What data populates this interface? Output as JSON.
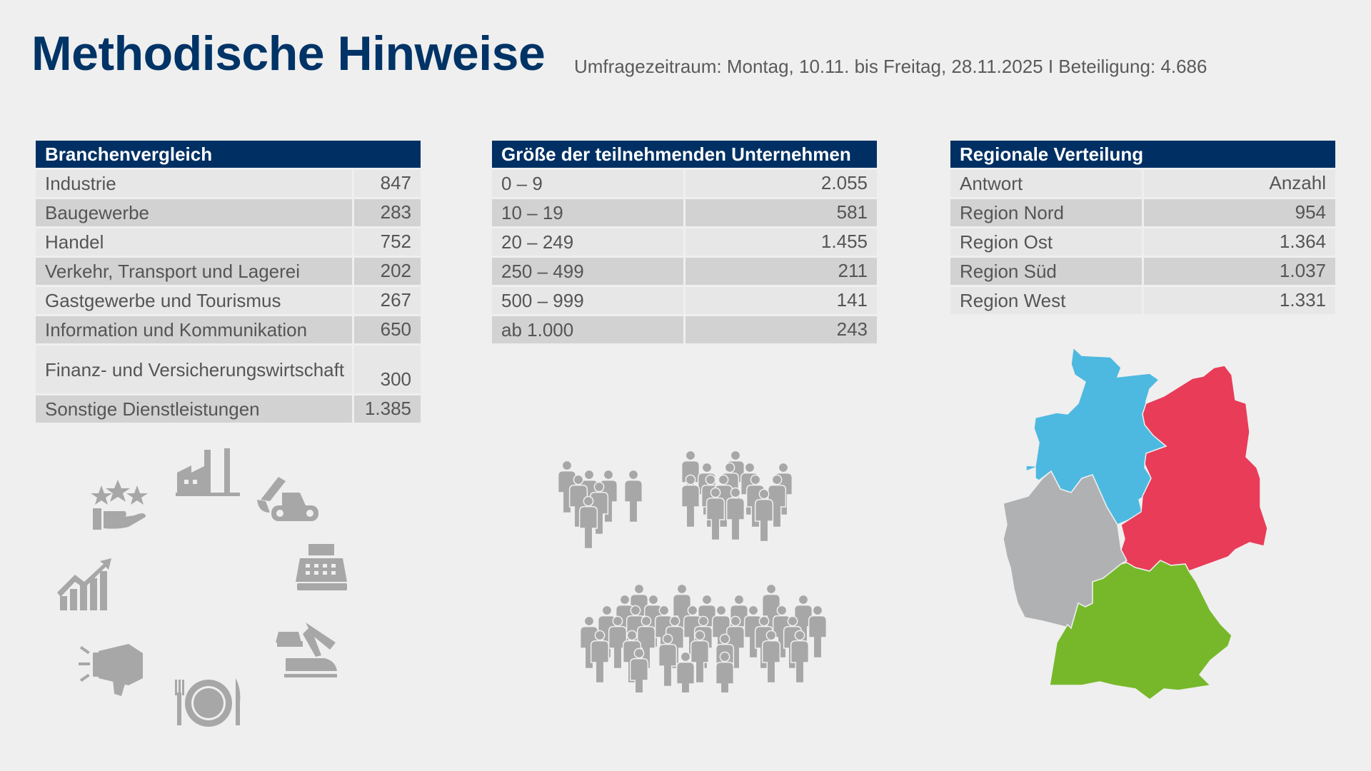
{
  "header": {
    "title": "Methodische Hinweise",
    "subtitle": "Umfragezeitraum: Montag, 10.11. bis Freitag, 28.11.2025 I Beteiligung: 4.686"
  },
  "tables": {
    "branchen": {
      "title": "Branchenvergleich",
      "rows": [
        {
          "label": "Industrie",
          "value": "847"
        },
        {
          "label": "Baugewerbe",
          "value": "283"
        },
        {
          "label": "Handel",
          "value": "752"
        },
        {
          "label": "Verkehr, Transport und Lagerei",
          "value": "202"
        },
        {
          "label": "Gastgewerbe und Tourismus",
          "value": "267"
        },
        {
          "label": "Information und Kommunikation",
          "value": "650"
        },
        {
          "label": "Finanz- und Versicherungswirtschaft",
          "value": "300"
        },
        {
          "label": "Sonstige Dienstleistungen",
          "value": "1.385"
        }
      ]
    },
    "groesse": {
      "title": "Größe der teilnehmenden Unternehmen",
      "rows": [
        {
          "label": "0 – 9",
          "value": "2.055"
        },
        {
          "label": "10 – 19",
          "value": "581"
        },
        {
          "label": "20 – 249",
          "value": "1.455"
        },
        {
          "label": "250 – 499",
          "value": "211"
        },
        {
          "label": "500 – 999",
          "value": "141"
        },
        {
          "label": "ab 1.000",
          "value": "243"
        }
      ]
    },
    "regional": {
      "title": "Regionale Verteilung",
      "rows": [
        {
          "label": "Antwort",
          "value": "Anzahl"
        },
        {
          "label": "Region Nord",
          "value": "954"
        },
        {
          "label": "Region Ost",
          "value": "1.364"
        },
        {
          "label": "Region Süd",
          "value": "1.037"
        },
        {
          "label": "Region West",
          "value": "1.331"
        }
      ]
    }
  },
  "map": {
    "regions": [
      {
        "name": "Region Nord",
        "color": "#4db9e0"
      },
      {
        "name": "Region Ost",
        "color": "#e83c59"
      },
      {
        "name": "Region West",
        "color": "#b0b1b3"
      },
      {
        "name": "Region Süd",
        "color": "#76b82a"
      }
    ]
  },
  "icons": {
    "color": "#a7a7a7",
    "industries": [
      "service-stars-hand-icon",
      "factory-icon",
      "excavator-icon",
      "cash-register-icon",
      "transport-icon",
      "plate-cutlery-icon",
      "megaphone-icon",
      "growth-chart-icon"
    ]
  },
  "colors": {
    "navy": "#003063",
    "background": "#efefef"
  }
}
